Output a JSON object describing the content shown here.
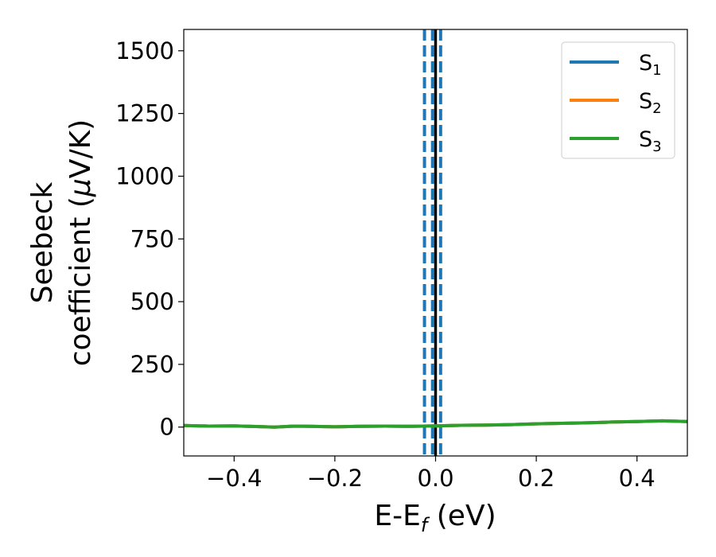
{
  "chart_data": {
    "type": "line",
    "xlabel": {
      "main": "E-E",
      "sub": "f",
      "unit": " (eV)"
    },
    "ylabel": {
      "line1": "Seebeck",
      "line2_prefix": "coefficient  (",
      "mu": "μ",
      "line2_suffix": "V/K)"
    },
    "xlim": [
      -0.5,
      0.5
    ],
    "ylim": [
      -115,
      1585
    ],
    "x_ticks": [
      -0.4,
      -0.2,
      0.0,
      0.2,
      0.4
    ],
    "x_tick_labels": [
      "−0.4",
      "−0.2",
      "0.0",
      "0.2",
      "0.4"
    ],
    "y_ticks": [
      0,
      250,
      500,
      750,
      1000,
      1250,
      1500
    ],
    "y_tick_labels": [
      "0",
      "250",
      "500",
      "750",
      "1000",
      "1250",
      "1500"
    ],
    "grid": false,
    "legend_position": "top-right",
    "series": [
      {
        "name": "S",
        "sub": "1",
        "color": "#1f77b4",
        "x": [
          -0.5,
          -0.45,
          -0.4,
          -0.35,
          -0.32,
          -0.28,
          -0.25,
          -0.2,
          -0.15,
          -0.1,
          -0.05,
          0.0,
          0.05,
          0.1,
          0.15,
          0.2,
          0.25,
          0.3,
          0.35,
          0.4,
          0.45,
          0.5
        ],
        "y": [
          6,
          4,
          5,
          2,
          0,
          4,
          3,
          1,
          3,
          4,
          3,
          5,
          7,
          8,
          10,
          13,
          15,
          17,
          20,
          22,
          25,
          22
        ]
      },
      {
        "name": "S",
        "sub": "2",
        "color": "#ff7f0e",
        "x": [
          -0.5,
          -0.45,
          -0.4,
          -0.35,
          -0.32,
          -0.28,
          -0.25,
          -0.2,
          -0.15,
          -0.1,
          -0.05,
          0.0,
          0.05,
          0.1,
          0.15,
          0.2,
          0.25,
          0.3,
          0.35,
          0.4,
          0.45,
          0.5
        ],
        "y": [
          6,
          4,
          5,
          2,
          0,
          4,
          3,
          1,
          3,
          4,
          3,
          5,
          7,
          8,
          10,
          13,
          15,
          17,
          20,
          22,
          25,
          22
        ]
      },
      {
        "name": "S",
        "sub": "3",
        "color": "#2ca02c",
        "x": [
          -0.5,
          -0.45,
          -0.4,
          -0.35,
          -0.32,
          -0.28,
          -0.25,
          -0.2,
          -0.15,
          -0.1,
          -0.05,
          0.0,
          0.05,
          0.1,
          0.15,
          0.2,
          0.25,
          0.3,
          0.35,
          0.4,
          0.45,
          0.5
        ],
        "y": [
          6,
          4,
          5,
          2,
          0,
          4,
          3,
          1,
          3,
          4,
          3,
          5,
          7,
          8,
          10,
          13,
          15,
          17,
          20,
          22,
          25,
          22
        ]
      }
    ],
    "vertical_lines": [
      {
        "x": -0.022,
        "style": "dashed",
        "color": "#1f77b4"
      },
      {
        "x": -0.006,
        "style": "dashed",
        "color": "#1f77b4"
      },
      {
        "x": 0.01,
        "style": "dashed",
        "color": "#1f77b4"
      },
      {
        "x": 0.0,
        "style": "solid",
        "color": "#000000"
      }
    ]
  }
}
